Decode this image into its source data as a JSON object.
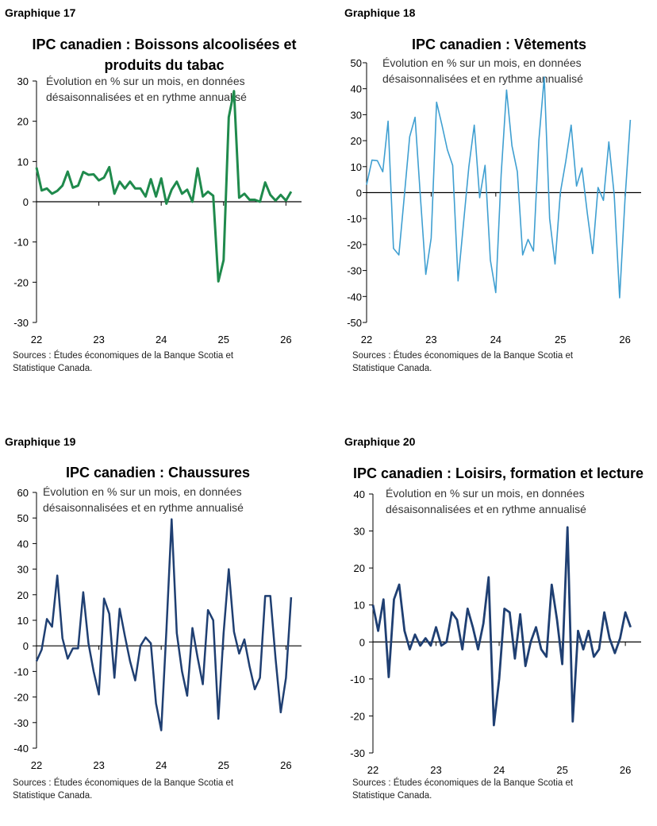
{
  "chart_data": [
    {
      "type": "line",
      "label": "Graphique 17",
      "title": "IPC canadien : Boissons alcoolisées et produits du tabac",
      "title_lines": [
        "IPC canadien : Boissons alcoolisées et",
        "produits du tabac"
      ],
      "subtitle_lines": [
        "Évolution en % sur un mois, en données",
        "désaisonnalisées et en rythme annualisé"
      ],
      "source_lines": [
        "Sources : Études économiques de la Banque Scotia et",
        "Statistique Canada."
      ],
      "color": "#1f8a4c",
      "ylim": [
        -30,
        30
      ],
      "yticks": [
        -30,
        -20,
        -10,
        0,
        10,
        20,
        30
      ],
      "xlim": [
        0,
        51
      ],
      "xtick_labels": [
        "22",
        "23",
        "24",
        "25",
        "26"
      ],
      "xtick_positions": [
        0,
        12,
        24,
        36,
        48
      ],
      "series": [
        {
          "values": [
            8.5,
            2.8,
            3.3,
            2.0,
            2.7,
            4.0,
            7.5,
            3.5,
            4.0,
            7.4,
            6.7,
            6.8,
            5.3,
            6.0,
            8.6,
            2.0,
            5.0,
            3.3,
            5.0,
            3.3,
            3.3,
            1.3,
            5.6,
            1.3,
            5.8,
            -0.5,
            3.0,
            5.0,
            2.0,
            3.0,
            0.0,
            8.3,
            1.3,
            2.5,
            1.5,
            -19.8,
            -14.5,
            21.0,
            27.5,
            1.0,
            2.0,
            0.5,
            0.5,
            0.0,
            4.8,
            1.7,
            0.3,
            1.7,
            0.3,
            2.5
          ]
        }
      ]
    },
    {
      "type": "line",
      "label": "Graphique 18",
      "title": "IPC canadien : Vêtements",
      "title_lines": [
        "IPC canadien : Vêtements"
      ],
      "subtitle_lines": [
        "Évolution en % sur un mois, en données",
        "désaisonnalisées et en rythme annualisé"
      ],
      "source_lines": [
        "Sources : Études économiques de la Banque Scotia et",
        "Statistique Canada."
      ],
      "color": "#3f9fd1",
      "ylim": [
        -50,
        50
      ],
      "yticks": [
        -50,
        -40,
        -30,
        -20,
        -10,
        0,
        10,
        20,
        30,
        40,
        50
      ],
      "xlim": [
        0,
        51
      ],
      "xtick_labels": [
        "22",
        "23",
        "24",
        "25",
        "26"
      ],
      "xtick_positions": [
        0,
        12,
        24,
        36,
        48
      ],
      "series": [
        {
          "values": [
            3.0,
            12.5,
            12.3,
            8.0,
            27.5,
            -21.5,
            -24.0,
            -1.5,
            21.5,
            29.0,
            -1.5,
            -31.5,
            -17.5,
            34.8,
            26.0,
            16.5,
            10.5,
            -34.0,
            -12.0,
            10.0,
            26.0,
            -2.0,
            10.5,
            -26.0,
            -38.5,
            7.0,
            39.5,
            18.0,
            8.0,
            -24.0,
            -18.0,
            -22.5,
            20.0,
            44.5,
            -10.0,
            -27.5,
            0.0,
            12.0,
            26.0,
            2.5,
            9.5,
            -8.0,
            -23.5,
            2.0,
            -3.0,
            19.5,
            -1.0,
            -40.5,
            -3.0,
            28.0
          ]
        }
      ]
    },
    {
      "type": "line",
      "label": "Graphique 19",
      "title": "IPC canadien : Chaussures",
      "title_lines": [
        "IPC canadien : Chaussures"
      ],
      "subtitle_lines": [
        "Évolution en % sur un mois, en données",
        "désaisonnalisées et en rythme annualisé"
      ],
      "source_lines": [
        "Sources : Études économiques de la Banque Scotia et",
        "Statistique Canada."
      ],
      "color": "#1f3f72",
      "ylim": [
        -40,
        60
      ],
      "yticks": [
        -40,
        -30,
        -20,
        -10,
        0,
        10,
        20,
        30,
        40,
        50,
        60
      ],
      "xlim": [
        0,
        51
      ],
      "xtick_labels": [
        "22",
        "23",
        "24",
        "25",
        "26"
      ],
      "xtick_positions": [
        0,
        12,
        24,
        36,
        48
      ],
      "series": [
        {
          "values": [
            -6.0,
            -1.5,
            10.5,
            7.5,
            27.5,
            3.0,
            -5.0,
            -1.0,
            -1.0,
            21.0,
            1.0,
            -10.0,
            -19.0,
            18.5,
            12.5,
            -12.5,
            14.5,
            4.0,
            -6.0,
            -13.5,
            0.0,
            3.3,
            1.0,
            -22.5,
            -33.0,
            6.0,
            49.5,
            5.0,
            -10.0,
            -19.5,
            7.0,
            -4.5,
            -15.0,
            14.0,
            10.0,
            -28.5,
            5.0,
            30.0,
            5.5,
            -3.0,
            2.5,
            -8.0,
            -17.0,
            -12.5,
            19.5,
            19.5,
            -5.0,
            -26.0,
            -12.5,
            19.0
          ]
        }
      ]
    },
    {
      "type": "line",
      "label": "Graphique 20",
      "title": "IPC canadien : Loisirs, formation et lecture",
      "title_lines": [
        "IPC canadien : Loisirs, formation et lecture"
      ],
      "subtitle_lines": [
        "Évolution en % sur un mois, en données",
        "désaisonnalisées et en rythme annualisé"
      ],
      "source_lines": [
        "Sources : Études économiques de la Banque Scotia et",
        "Statistique Canada."
      ],
      "color": "#1f3f72",
      "ylim": [
        -30,
        40
      ],
      "yticks": [
        -30,
        -20,
        -10,
        0,
        10,
        20,
        30,
        40
      ],
      "xlim": [
        0,
        51
      ],
      "xtick_labels": [
        "22",
        "23",
        "24",
        "25",
        "26"
      ],
      "xtick_positions": [
        0,
        12,
        24,
        36,
        48
      ],
      "series": [
        {
          "values": [
            10.0,
            3.0,
            11.5,
            -9.5,
            11.5,
            15.5,
            3.0,
            -2.0,
            2.0,
            -1.0,
            1.0,
            -1.0,
            4.0,
            -1.0,
            0.0,
            8.0,
            6.0,
            -2.0,
            9.0,
            4.0,
            -2.0,
            5.0,
            17.5,
            -22.5,
            -10.0,
            9.0,
            8.0,
            -4.5,
            7.5,
            -6.5,
            0.0,
            4.0,
            -2.0,
            -4.0,
            15.5,
            6.0,
            -6.0,
            31.0,
            -21.5,
            3.0,
            -2.0,
            3.0,
            -4.0,
            -2.0,
            8.0,
            1.0,
            -3.0,
            1.0,
            8.0,
            4.0
          ]
        }
      ]
    }
  ]
}
